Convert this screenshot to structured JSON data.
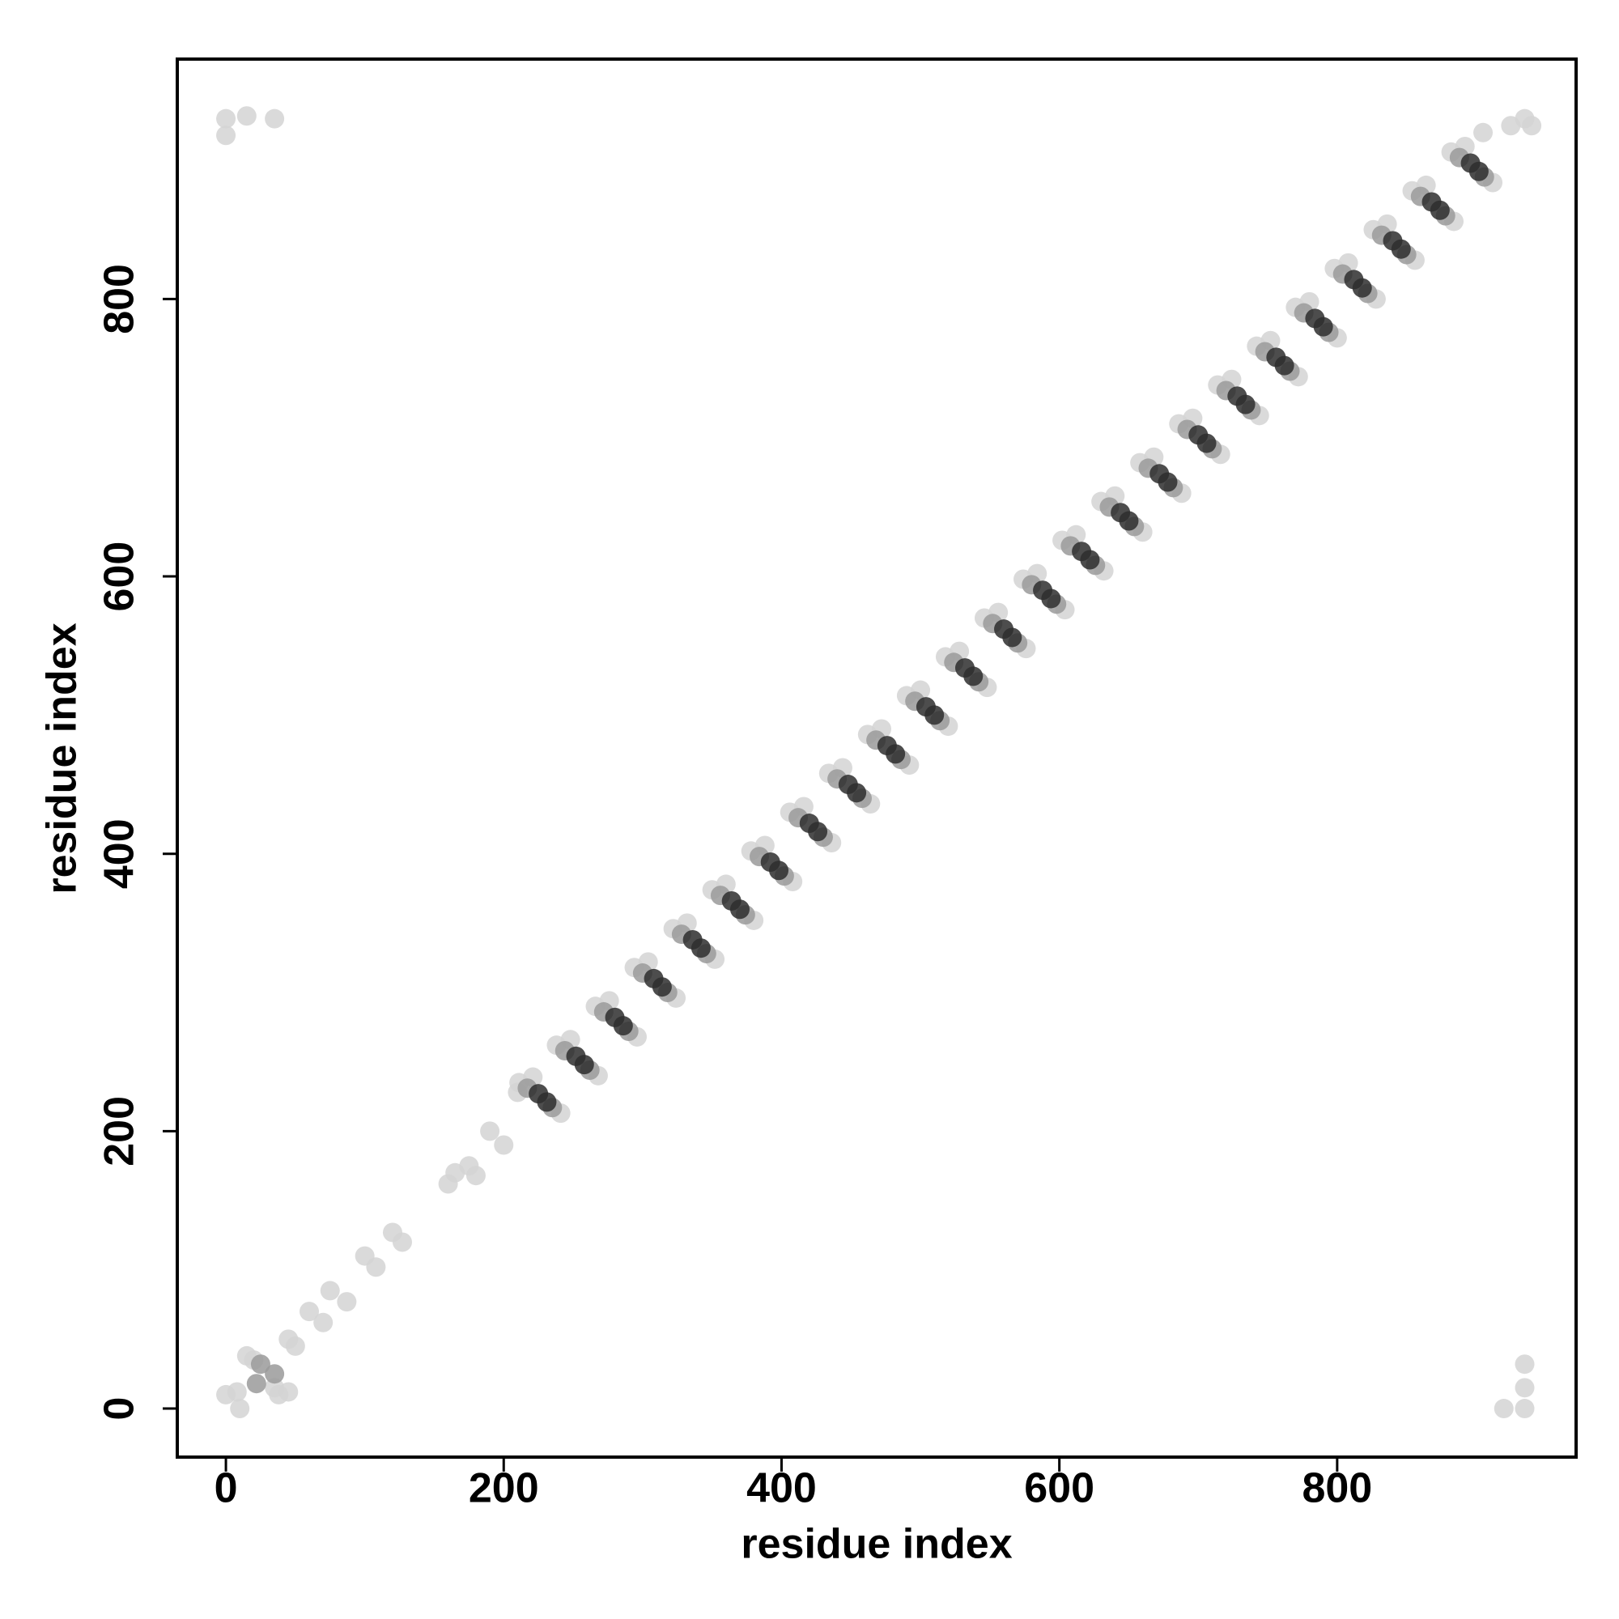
{
  "chart_data": {
    "type": "scatter",
    "xlabel": "residue index",
    "ylabel": "residue index",
    "xlim": [
      -35,
      972
    ],
    "ylim": [
      -35,
      973
    ],
    "xticks": [
      0,
      200,
      400,
      600,
      800
    ],
    "yticks": [
      0,
      200,
      400,
      600,
      800
    ],
    "grid": false,
    "series": [
      {
        "color": "#d4d4d4",
        "x": [
          211,
          241,
          221,
          238,
          268,
          248,
          266,
          296,
          276,
          294,
          324,
          304,
          322,
          352,
          332,
          350,
          380,
          360,
          378,
          408,
          388,
          406,
          436,
          416,
          434,
          464,
          444,
          462,
          492,
          472,
          490,
          520,
          500,
          518,
          548,
          528,
          546,
          576,
          556,
          574,
          604,
          584,
          602,
          632,
          612,
          630,
          660,
          640,
          658,
          688,
          668,
          686,
          716,
          696,
          714,
          744,
          724,
          742,
          772,
          752,
          770,
          800,
          780,
          798,
          828,
          808,
          826,
          856,
          836,
          854,
          884,
          864,
          882,
          912,
          892,
          0,
          8,
          10,
          15,
          20,
          35,
          38,
          45,
          45,
          50,
          60,
          70,
          75,
          87,
          100,
          108,
          120,
          127,
          160,
          165,
          175,
          180,
          190,
          200,
          210,
          0,
          0,
          15,
          35,
          920,
          935,
          935,
          935,
          925,
          935,
          940,
          905
        ],
        "y": [
          235,
          213,
          239,
          262,
          240,
          266,
          290,
          268,
          294,
          318,
          296,
          322,
          346,
          324,
          350,
          374,
          352,
          378,
          402,
          380,
          406,
          430,
          408,
          434,
          458,
          436,
          462,
          486,
          464,
          490,
          514,
          492,
          518,
          542,
          520,
          546,
          570,
          548,
          574,
          598,
          576,
          602,
          626,
          604,
          630,
          654,
          632,
          658,
          682,
          660,
          686,
          710,
          688,
          714,
          738,
          716,
          742,
          766,
          744,
          770,
          794,
          772,
          798,
          822,
          800,
          826,
          850,
          828,
          854,
          878,
          856,
          882,
          906,
          884,
          910,
          10,
          12,
          0,
          38,
          35,
          15,
          10,
          12,
          50,
          45,
          70,
          62,
          85,
          77,
          110,
          102,
          127,
          120,
          162,
          170,
          175,
          168,
          200,
          190,
          228,
          930,
          918,
          932,
          930,
          0,
          0,
          15,
          32,
          925,
          930,
          925,
          920
        ]
      },
      {
        "color": "#9a9a9a",
        "x": [
          217,
          235,
          244,
          262,
          272,
          290,
          300,
          318,
          328,
          346,
          356,
          374,
          384,
          402,
          412,
          430,
          440,
          458,
          468,
          486,
          496,
          514,
          524,
          542,
          552,
          570,
          580,
          598,
          608,
          626,
          636,
          654,
          664,
          682,
          692,
          710,
          720,
          738,
          748,
          766,
          776,
          794,
          804,
          822,
          832,
          850,
          860,
          878,
          888,
          906,
          25,
          35,
          22
        ],
        "y": [
          231,
          217,
          258,
          244,
          286,
          272,
          314,
          300,
          342,
          328,
          370,
          356,
          398,
          384,
          426,
          412,
          454,
          440,
          482,
          468,
          510,
          496,
          538,
          524,
          566,
          552,
          594,
          580,
          622,
          608,
          650,
          636,
          678,
          664,
          706,
          692,
          734,
          720,
          762,
          748,
          790,
          776,
          818,
          804,
          846,
          832,
          874,
          860,
          902,
          888,
          32,
          25,
          18
        ]
      },
      {
        "color": "#2e2e2e",
        "x": [
          225,
          231,
          252,
          258,
          280,
          286,
          308,
          314,
          336,
          342,
          364,
          370,
          392,
          398,
          420,
          426,
          448,
          454,
          476,
          482,
          504,
          510,
          532,
          538,
          560,
          566,
          588,
          594,
          616,
          622,
          644,
          650,
          672,
          678,
          700,
          706,
          728,
          734,
          756,
          762,
          784,
          790,
          812,
          818,
          840,
          846,
          868,
          874,
          896,
          902
        ],
        "y": [
          227,
          221,
          254,
          248,
          282,
          276,
          310,
          304,
          338,
          332,
          366,
          360,
          394,
          388,
          422,
          416,
          450,
          444,
          478,
          472,
          506,
          500,
          534,
          528,
          562,
          556,
          590,
          584,
          618,
          612,
          646,
          640,
          674,
          668,
          702,
          696,
          730,
          724,
          758,
          752,
          786,
          780,
          814,
          808,
          842,
          836,
          870,
          864,
          898,
          892
        ]
      }
    ]
  }
}
